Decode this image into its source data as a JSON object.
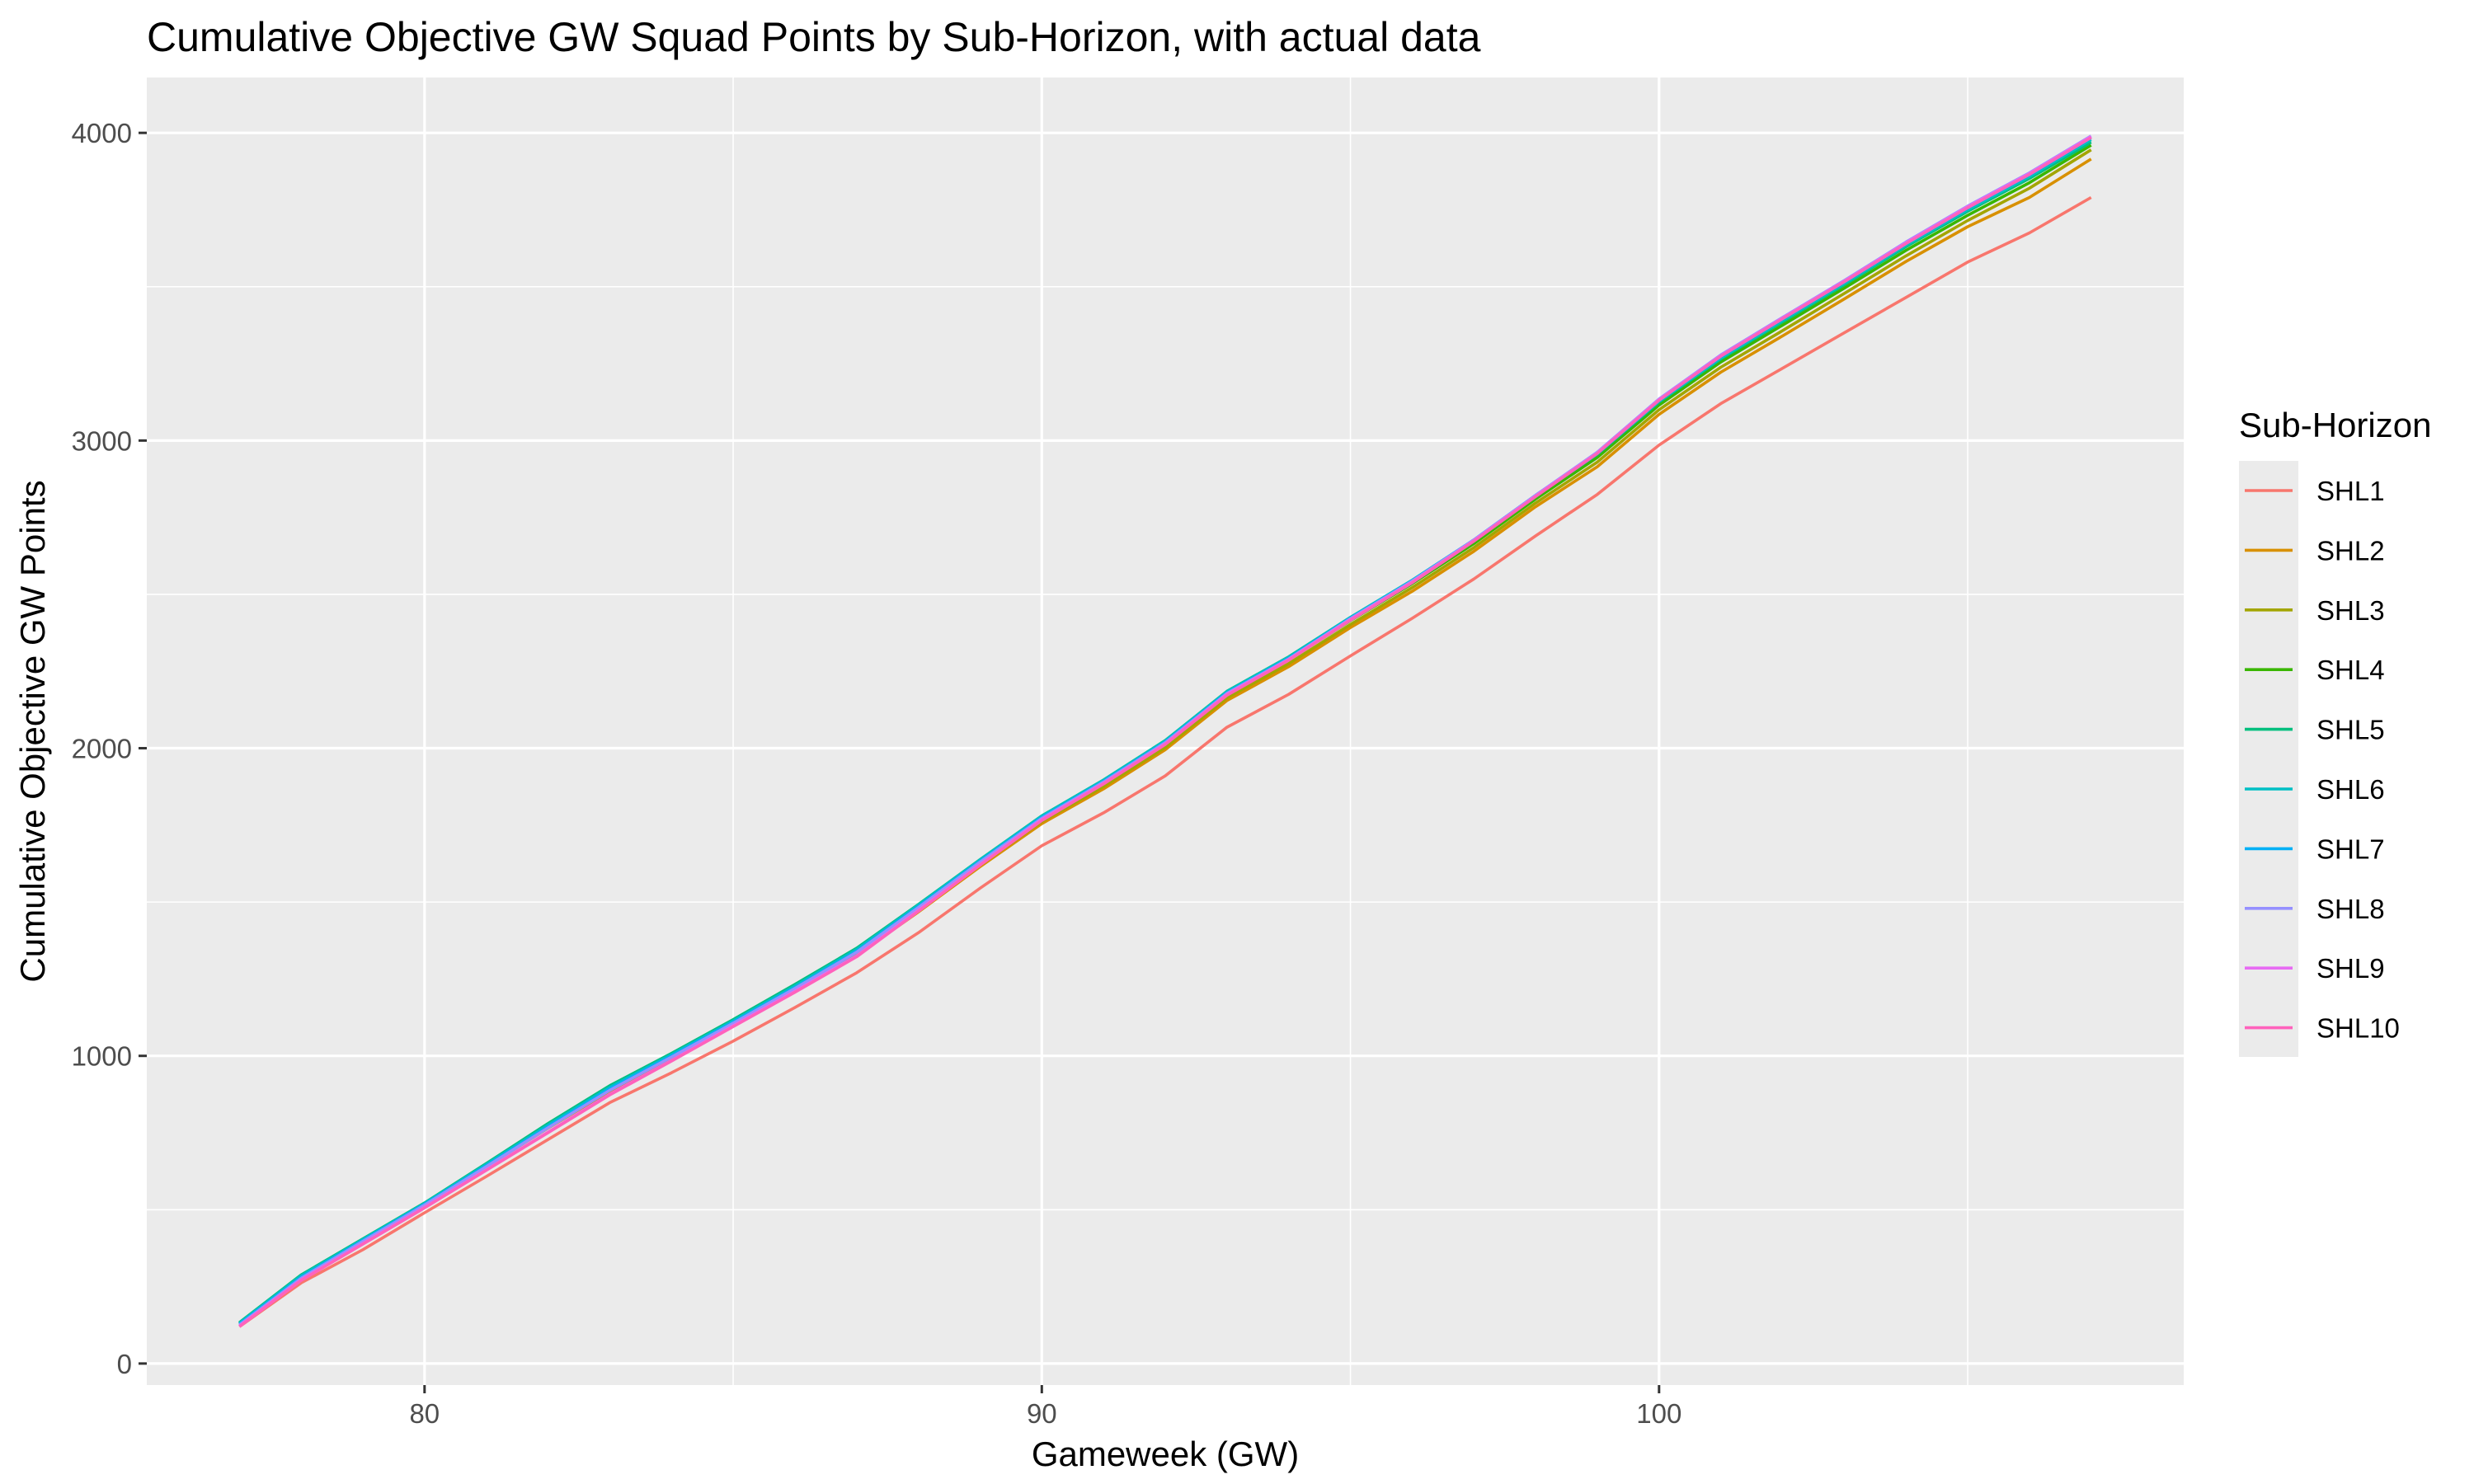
{
  "chart_data": {
    "type": "line",
    "title": "Cumulative Objective GW Squad Points by Sub-Horizon, with actual data",
    "xlabel": "Gameweek (GW)",
    "ylabel": "Cumulative Objective GW Points",
    "xlim": [
      75.5,
      108.5
    ],
    "ylim": [
      -70,
      4180
    ],
    "x_ticks": [
      80,
      90,
      100
    ],
    "y_ticks": [
      0,
      1000,
      2000,
      3000,
      4000
    ],
    "grid": true,
    "legend": {
      "title": "Sub-Horizon",
      "position": "right"
    },
    "x": [
      77,
      78,
      79,
      80,
      81,
      82,
      83,
      84,
      85,
      86,
      87,
      88,
      89,
      90,
      91,
      92,
      93,
      94,
      95,
      96,
      97,
      98,
      99,
      100,
      101,
      102,
      103,
      104,
      105,
      106,
      107
    ],
    "series": [
      {
        "name": "SHL1",
        "color": "#F8766D",
        "values": [
          120,
          262,
          370,
          490,
          608,
          728,
          848,
          945,
          1048,
          1157,
          1270,
          1400,
          1545,
          1683,
          1790,
          1910,
          2068,
          2175,
          2300,
          2422,
          2550,
          2690,
          2825,
          2985,
          3120,
          3235,
          3350,
          3465,
          3580,
          3675,
          3790
        ]
      },
      {
        "name": "SHL2",
        "color": "#D89000",
        "values": [
          130,
          282,
          400,
          515,
          640,
          765,
          885,
          992,
          1100,
          1212,
          1327,
          1468,
          1615,
          1755,
          1868,
          1995,
          2155,
          2265,
          2392,
          2510,
          2640,
          2785,
          2915,
          3085,
          3222,
          3340,
          3460,
          3582,
          3695,
          3790,
          3915
        ]
      },
      {
        "name": "SHL3",
        "color": "#A3A500",
        "values": [
          130,
          283,
          402,
          518,
          643,
          768,
          890,
          996,
          1105,
          1216,
          1332,
          1474,
          1620,
          1762,
          1876,
          2003,
          2164,
          2275,
          2402,
          2522,
          2652,
          2797,
          2930,
          3100,
          3238,
          3357,
          3478,
          3600,
          3715,
          3820,
          3945
        ]
      },
      {
        "name": "SHL4",
        "color": "#39B600",
        "values": [
          132,
          286,
          404,
          520,
          646,
          772,
          895,
          1002,
          1111,
          1222,
          1340,
          1483,
          1630,
          1772,
          1888,
          2015,
          2175,
          2287,
          2415,
          2535,
          2665,
          2810,
          2945,
          3115,
          3255,
          3375,
          3495,
          3618,
          3732,
          3838,
          3960
        ]
      },
      {
        "name": "SHL5",
        "color": "#00BF7D",
        "values": [
          133,
          288,
          405,
          522,
          650,
          780,
          903,
          1008,
          1118,
          1232,
          1350,
          1492,
          1638,
          1780,
          1897,
          2025,
          2185,
          2297,
          2425,
          2545,
          2675,
          2820,
          2955,
          3125,
          3265,
          3386,
          3506,
          3630,
          3745,
          3852,
          3970
        ]
      },
      {
        "name": "SHL6",
        "color": "#00BFC4",
        "values": [
          131,
          285,
          403,
          520,
          647,
          775,
          898,
          1004,
          1114,
          1227,
          1346,
          1490,
          1637,
          1779,
          1896,
          2024,
          2184,
          2296,
          2425,
          2546,
          2677,
          2822,
          2958,
          3128,
          3268,
          3390,
          3510,
          3635,
          3750,
          3858,
          3978
        ]
      },
      {
        "name": "SHL7",
        "color": "#00B0F6",
        "values": [
          128,
          280,
          400,
          518,
          643,
          770,
          893,
          1000,
          1110,
          1222,
          1340,
          1485,
          1633,
          1775,
          1892,
          2020,
          2180,
          2292,
          2422,
          2544,
          2677,
          2822,
          2960,
          3132,
          3273,
          3396,
          3516,
          3640,
          3756,
          3864,
          3984
        ]
      },
      {
        "name": "SHL8",
        "color": "#9590FF",
        "values": [
          125,
          277,
          397,
          515,
          640,
          766,
          888,
          996,
          1106,
          1219,
          1337,
          1482,
          1630,
          1772,
          1890,
          2018,
          2178,
          2290,
          2421,
          2543,
          2677,
          2822,
          2962,
          3135,
          3278,
          3400,
          3520,
          3645,
          3762,
          3870,
          3990
        ]
      },
      {
        "name": "SHL9",
        "color": "#E76BF3",
        "values": [
          122,
          272,
          390,
          508,
          630,
          752,
          875,
          985,
          1098,
          1210,
          1325,
          1473,
          1622,
          1768,
          1886,
          2014,
          2175,
          2288,
          2418,
          2540,
          2675,
          2820,
          2960,
          3133,
          3276,
          3398,
          3518,
          3643,
          3760,
          3868,
          3988
        ]
      },
      {
        "name": "SHL10",
        "color": "#FF62BC",
        "values": [
          120,
          270,
          388,
          506,
          628,
          750,
          873,
          983,
          1095,
          1207,
          1322,
          1470,
          1620,
          1765,
          1884,
          2012,
          2172,
          2286,
          2416,
          2538,
          2673,
          2818,
          2958,
          3131,
          3274,
          3396,
          3516,
          3640,
          3757,
          3865,
          3985
        ]
      }
    ]
  }
}
